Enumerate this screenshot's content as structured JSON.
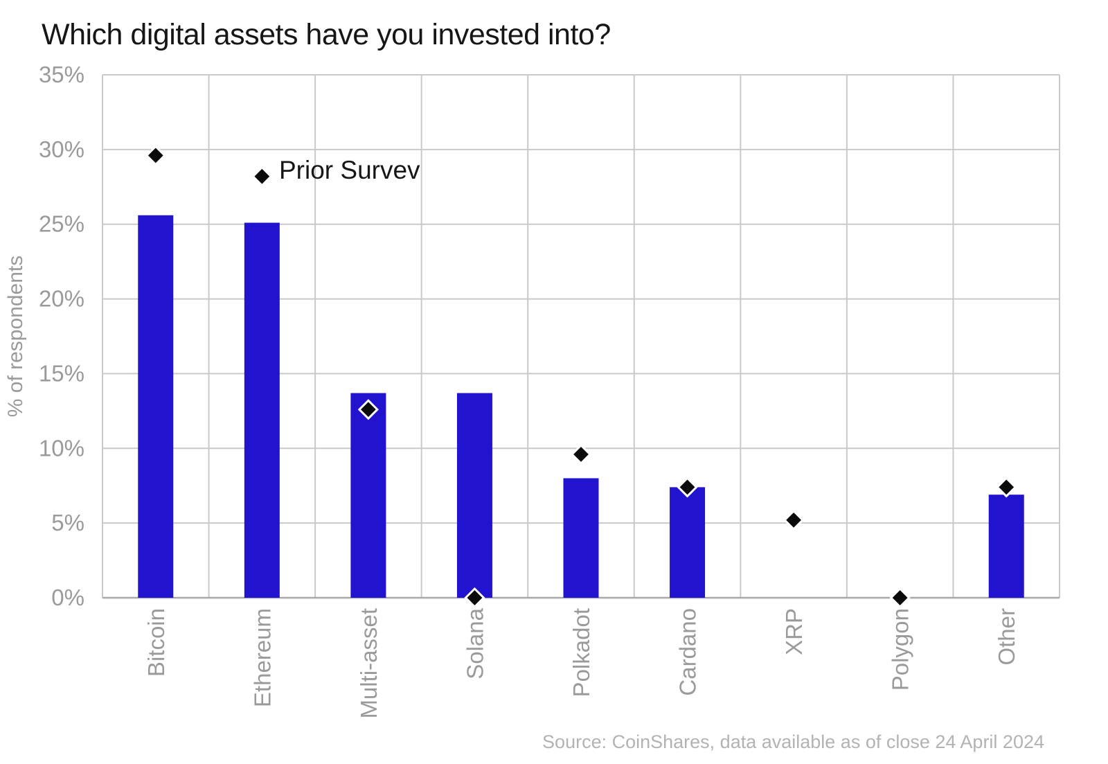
{
  "chart_data": {
    "type": "bar",
    "title": "Which digital assets have you invested into?",
    "ylabel": "% of respondents",
    "xlabel": "",
    "ylim": [
      0,
      35
    ],
    "ytick_step": 5,
    "ytick_suffix": "%",
    "grid": true,
    "categories": [
      "Bitcoin",
      "Ethereum",
      "Multi-asset",
      "Solana",
      "Polkadot",
      "Cardano",
      "XRP",
      "Polygon",
      "Other"
    ],
    "series": [
      {
        "chart_type": "bar",
        "color": "#2213CE",
        "values": [
          25.6,
          25.1,
          13.7,
          13.7,
          8.0,
          7.4,
          0,
          0,
          6.9
        ]
      },
      {
        "name": "Prior Survev",
        "chart_type": "scatter",
        "marker": "diamond",
        "color": "#0b0b0b",
        "marker_outline": "#ffffff",
        "values": [
          29.6,
          28.2,
          12.6,
          0,
          9.6,
          7.4,
          5.2,
          0,
          7.4
        ]
      }
    ],
    "legend_position": "annotation beside Ethereum marker",
    "source": "Source: CoinShares, data available as of close 24 April 2024"
  },
  "style_colors": {
    "bar_blue": "#2213CE",
    "marker_black": "#0b0b0b",
    "gridline_gray": "#c9c9c9",
    "axis_gray": "#a8a8a8",
    "tick_text_gray": "#9a9a9a",
    "source_text_gray": "#b3b3b3",
    "title_black": "#161616"
  }
}
